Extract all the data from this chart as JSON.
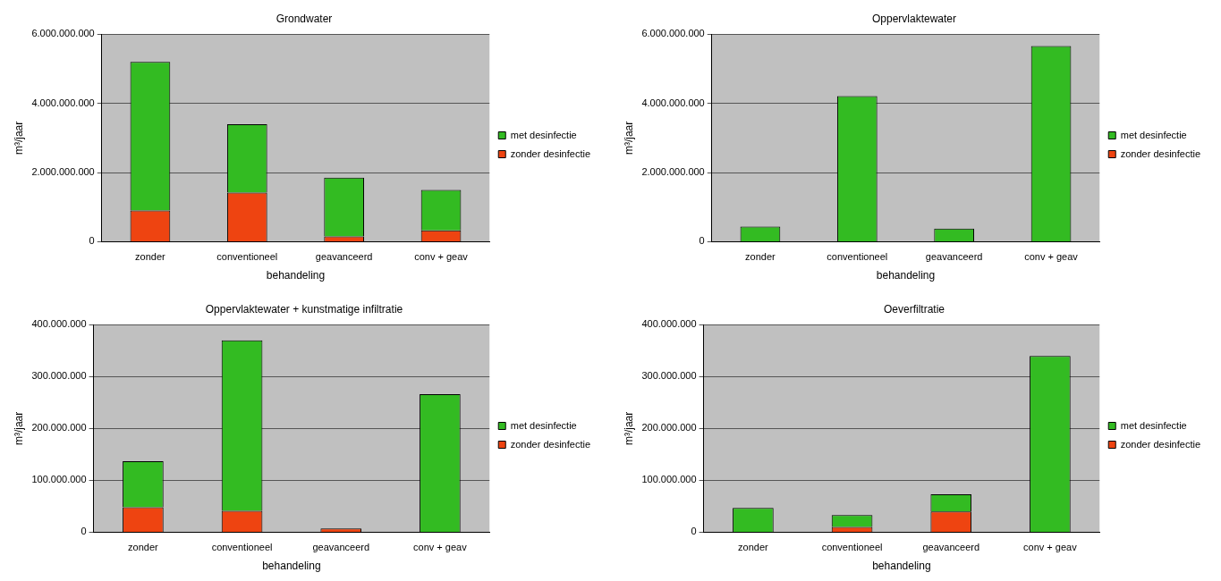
{
  "chart_data": [
    {
      "type": "bar",
      "title": "Grondwater",
      "xlabel": "behandeling",
      "ylabel": "m³/jaar",
      "categories": [
        "zonder",
        "conventioneel",
        "geavanceerd",
        "conv + geav"
      ],
      "stacked": true,
      "legend": "right",
      "grid": "y",
      "series": [
        {
          "name": "zonder desinfectie",
          "color": "#ee4411",
          "values": [
            900000000,
            1420000000,
            150000000,
            330000000
          ]
        },
        {
          "name": "met desinfectie",
          "color": "#33bb22",
          "values": [
            4300000000,
            1980000000,
            1700000000,
            1170000000
          ]
        }
      ],
      "ylim": [
        0,
        6000000000
      ],
      "yticks": [
        {
          "value": 0,
          "label": "0"
        },
        {
          "value": 2000000000,
          "label": "2.000.000.000"
        },
        {
          "value": 4000000000,
          "label": "4.000.000.000"
        },
        {
          "value": 6000000000,
          "label": "6.000.000.000"
        }
      ]
    },
    {
      "type": "bar",
      "title": "Oppervlaktewater",
      "xlabel": "behandeling",
      "ylabel": "m³/jaar",
      "categories": [
        "zonder",
        "conventioneel",
        "geavanceerd",
        "conv + geav"
      ],
      "stacked": true,
      "legend": "right",
      "grid": "y",
      "series": [
        {
          "name": "zonder desinfectie",
          "color": "#ee4411",
          "values": [
            0,
            0,
            0,
            0
          ]
        },
        {
          "name": "met desinfectie",
          "color": "#33bb22",
          "values": [
            440000000,
            4210000000,
            380000000,
            5660000000
          ]
        }
      ],
      "ylim": [
        0,
        6000000000
      ],
      "yticks": [
        {
          "value": 0,
          "label": "0"
        },
        {
          "value": 2000000000,
          "label": "2.000.000.000"
        },
        {
          "value": 4000000000,
          "label": "4.000.000.000"
        },
        {
          "value": 6000000000,
          "label": "6.000.000.000"
        }
      ]
    },
    {
      "type": "bar",
      "title": "Oppervlaktewater + kunstmatige infiltratie",
      "xlabel": "behandeling",
      "ylabel": "m³/jaar",
      "categories": [
        "zonder",
        "conventioneel",
        "geavanceerd",
        "conv + geav"
      ],
      "stacked": true,
      "legend": "right",
      "grid": "y",
      "series": [
        {
          "name": "zonder desinfectie",
          "color": "#ee4411",
          "values": [
            48000000,
            41000000,
            7000000,
            0
          ]
        },
        {
          "name": "met desinfectie",
          "color": "#33bb22",
          "values": [
            89000000,
            329000000,
            0,
            266000000
          ]
        }
      ],
      "ylim": [
        0,
        400000000
      ],
      "yticks": [
        {
          "value": 0,
          "label": "0"
        },
        {
          "value": 100000000,
          "label": "100.000.000"
        },
        {
          "value": 200000000,
          "label": "200.000.000"
        },
        {
          "value": 300000000,
          "label": "300.000.000"
        },
        {
          "value": 400000000,
          "label": "400.000.000"
        }
      ]
    },
    {
      "type": "bar",
      "title": "Oeverfiltratie",
      "xlabel": "behandeling",
      "ylabel": "m³/jaar",
      "categories": [
        "zonder",
        "conventioneel",
        "geavanceerd",
        "conv + geav"
      ],
      "stacked": true,
      "legend": "right",
      "grid": "y",
      "series": [
        {
          "name": "zonder desinfectie",
          "color": "#ee4411",
          "values": [
            0,
            10000000,
            40000000,
            0
          ]
        },
        {
          "name": "met desinfectie",
          "color": "#33bb22",
          "values": [
            47000000,
            23000000,
            33000000,
            340000000
          ]
        }
      ],
      "ylim": [
        0,
        400000000
      ],
      "yticks": [
        {
          "value": 0,
          "label": "0"
        },
        {
          "value": 100000000,
          "label": "100.000.000"
        },
        {
          "value": 200000000,
          "label": "200.000.000"
        },
        {
          "value": 300000000,
          "label": "300.000.000"
        },
        {
          "value": 400000000,
          "label": "400.000.000"
        }
      ]
    }
  ]
}
